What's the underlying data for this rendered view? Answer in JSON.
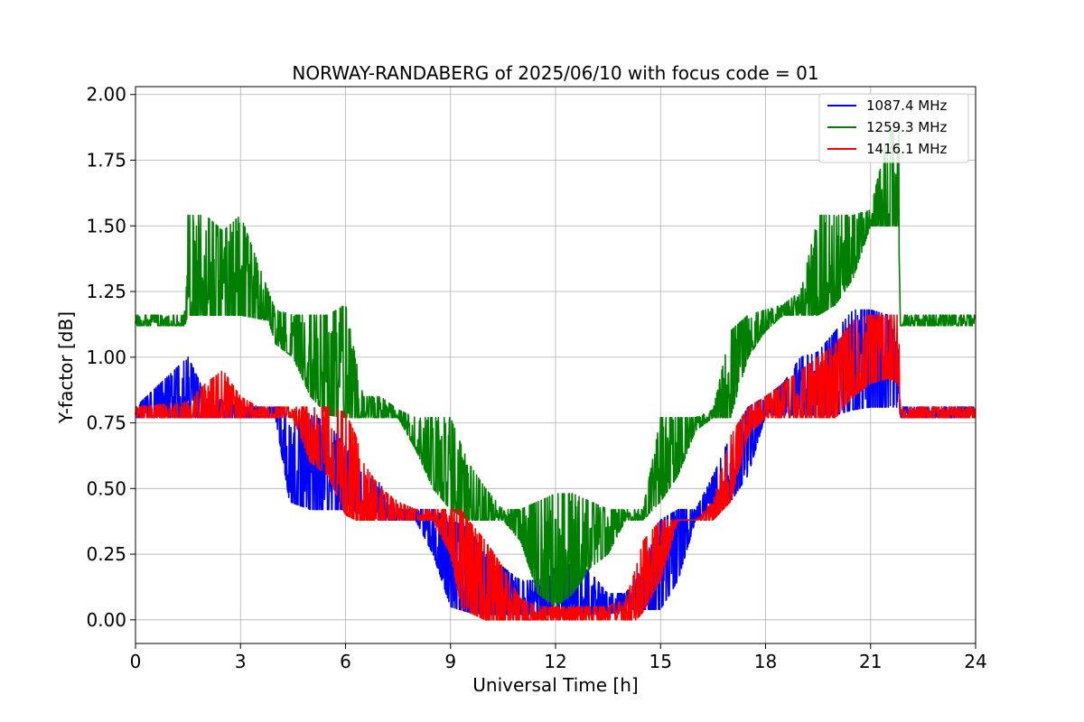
{
  "chart_data": {
    "type": "line",
    "title": "NORWAY-RANDABERG of 2025/06/10 with focus code = 01",
    "xlabel": "Universal Time [h]",
    "ylabel": "Y-factor [dB]",
    "xlim": [
      0,
      24
    ],
    "ylim": [
      -0.09,
      2.03
    ],
    "xticks": [
      0,
      3,
      6,
      9,
      12,
      15,
      18,
      21,
      24
    ],
    "yticks": [
      0.0,
      0.25,
      0.5,
      0.75,
      1.0,
      1.25,
      1.5,
      1.75,
      2.0
    ],
    "xtick_labels": [
      "0",
      "3",
      "6",
      "9",
      "12",
      "15",
      "18",
      "21",
      "24"
    ],
    "ytick_labels": [
      "0.00",
      "0.25",
      "0.50",
      "0.75",
      "1.00",
      "1.25",
      "1.50",
      "1.75",
      "2.00"
    ],
    "grid": true,
    "legend_position": "top-right",
    "series": [
      {
        "name": "1087.4 MHz",
        "color": "#0000ff",
        "envelope": {
          "x": [
            0.0,
            1.5,
            2.0,
            3.0,
            4.0,
            4.4,
            5.0,
            5.5,
            6.0,
            6.5,
            7.0,
            7.5,
            8.0,
            8.5,
            9.0,
            9.5,
            10.0,
            10.5,
            11.0,
            11.5,
            12.0,
            12.5,
            13.0,
            13.5,
            14.0,
            14.5,
            15.0,
            15.5,
            16.0,
            16.5,
            17.0,
            17.5,
            18.0,
            18.5,
            19.0,
            19.5,
            20.0,
            20.5,
            21.0,
            21.5,
            21.8,
            21.85,
            22.5,
            23.0,
            24.0
          ],
          "lower": [
            0.77,
            0.77,
            0.77,
            0.77,
            0.77,
            0.45,
            0.42,
            0.42,
            0.42,
            0.4,
            0.38,
            0.38,
            0.38,
            0.25,
            0.05,
            0.03,
            0.02,
            0.02,
            0.02,
            0.02,
            0.02,
            0.02,
            0.02,
            0.02,
            0.04,
            0.04,
            0.04,
            0.15,
            0.38,
            0.4,
            0.45,
            0.55,
            0.78,
            0.78,
            0.78,
            0.78,
            0.78,
            0.8,
            0.81,
            0.81,
            0.81,
            0.77,
            0.77,
            0.77,
            0.77
          ],
          "upper": [
            0.81,
            1.0,
            0.86,
            0.81,
            0.81,
            0.81,
            0.78,
            0.75,
            0.66,
            0.55,
            0.52,
            0.42,
            0.42,
            0.42,
            0.38,
            0.35,
            0.25,
            0.2,
            0.15,
            0.15,
            0.22,
            0.22,
            0.18,
            0.1,
            0.1,
            0.2,
            0.38,
            0.42,
            0.42,
            0.55,
            0.7,
            0.81,
            0.85,
            0.9,
            1.0,
            1.02,
            1.1,
            1.18,
            1.18,
            1.16,
            1.02,
            0.81,
            0.81,
            0.81,
            0.81
          ]
        }
      },
      {
        "name": "1259.3 MHz",
        "color": "#008000",
        "envelope": {
          "x": [
            0.0,
            1.4,
            1.5,
            2.0,
            2.5,
            3.0,
            3.8,
            4.0,
            4.5,
            5.0,
            5.5,
            6.0,
            6.5,
            7.0,
            7.5,
            8.0,
            8.5,
            9.0,
            9.5,
            10.0,
            10.5,
            11.0,
            11.5,
            12.0,
            12.5,
            13.0,
            13.5,
            14.0,
            14.5,
            15.0,
            15.5,
            16.0,
            16.5,
            17.0,
            17.5,
            18.0,
            18.5,
            19.0,
            19.5,
            20.0,
            20.5,
            21.0,
            21.5,
            21.8,
            21.85,
            22.5,
            23.0,
            24.0
          ],
          "lower": [
            1.12,
            1.12,
            1.16,
            1.16,
            1.16,
            1.16,
            1.14,
            1.05,
            1.0,
            0.85,
            0.78,
            0.77,
            0.77,
            0.77,
            0.77,
            0.65,
            0.5,
            0.42,
            0.38,
            0.38,
            0.38,
            0.3,
            0.1,
            0.05,
            0.1,
            0.2,
            0.25,
            0.38,
            0.38,
            0.45,
            0.55,
            0.72,
            0.77,
            0.77,
            1.0,
            1.1,
            1.16,
            1.16,
            1.16,
            1.2,
            1.3,
            1.5,
            1.5,
            1.5,
            1.12,
            1.12,
            1.12,
            1.12
          ],
          "upper": [
            1.16,
            1.16,
            1.54,
            1.54,
            1.48,
            1.54,
            1.25,
            1.18,
            1.16,
            1.16,
            1.16,
            1.2,
            0.85,
            0.85,
            0.8,
            0.77,
            0.77,
            0.77,
            0.6,
            0.5,
            0.42,
            0.42,
            0.45,
            0.48,
            0.48,
            0.45,
            0.42,
            0.42,
            0.42,
            0.77,
            0.77,
            0.77,
            0.8,
            1.1,
            1.16,
            1.18,
            1.2,
            1.25,
            1.54,
            1.54,
            1.54,
            1.56,
            1.85,
            1.92,
            1.16,
            1.16,
            1.16,
            1.16
          ]
        }
      },
      {
        "name": "1416.1 MHz",
        "color": "#ff0000",
        "envelope": {
          "x": [
            0.0,
            1.5,
            2.0,
            2.5,
            3.0,
            3.5,
            4.0,
            4.5,
            5.0,
            5.5,
            6.0,
            6.3,
            6.5,
            7.0,
            7.5,
            8.0,
            8.5,
            9.0,
            9.3,
            9.5,
            10.0,
            10.5,
            11.0,
            11.5,
            12.0,
            12.5,
            13.0,
            13.5,
            14.0,
            14.3,
            14.5,
            15.0,
            15.5,
            16.0,
            16.5,
            17.0,
            17.5,
            18.0,
            18.5,
            19.0,
            19.5,
            20.0,
            20.5,
            21.0,
            21.5,
            21.8,
            21.85,
            22.5,
            23.0,
            24.0
          ],
          "lower": [
            0.77,
            0.77,
            0.77,
            0.77,
            0.77,
            0.77,
            0.77,
            0.77,
            0.6,
            0.55,
            0.4,
            0.38,
            0.38,
            0.38,
            0.38,
            0.38,
            0.38,
            0.25,
            0.05,
            0.03,
            0.0,
            0.0,
            0.0,
            0.0,
            0.0,
            0.0,
            0.0,
            0.0,
            0.0,
            0.0,
            0.03,
            0.15,
            0.38,
            0.38,
            0.38,
            0.45,
            0.7,
            0.77,
            0.77,
            0.77,
            0.77,
            0.77,
            0.85,
            0.9,
            0.92,
            0.9,
            0.77,
            0.77,
            0.77,
            0.77
          ],
          "upper": [
            0.81,
            0.83,
            0.9,
            0.95,
            0.85,
            0.81,
            0.81,
            0.81,
            0.81,
            0.81,
            0.79,
            0.7,
            0.6,
            0.5,
            0.45,
            0.42,
            0.42,
            0.42,
            0.42,
            0.38,
            0.3,
            0.2,
            0.08,
            0.05,
            0.05,
            0.05,
            0.05,
            0.05,
            0.08,
            0.2,
            0.3,
            0.38,
            0.38,
            0.38,
            0.45,
            0.7,
            0.81,
            0.85,
            0.9,
            0.95,
            1.0,
            1.05,
            1.14,
            1.16,
            1.16,
            1.16,
            0.81,
            0.81,
            0.81,
            0.81
          ]
        }
      }
    ]
  }
}
